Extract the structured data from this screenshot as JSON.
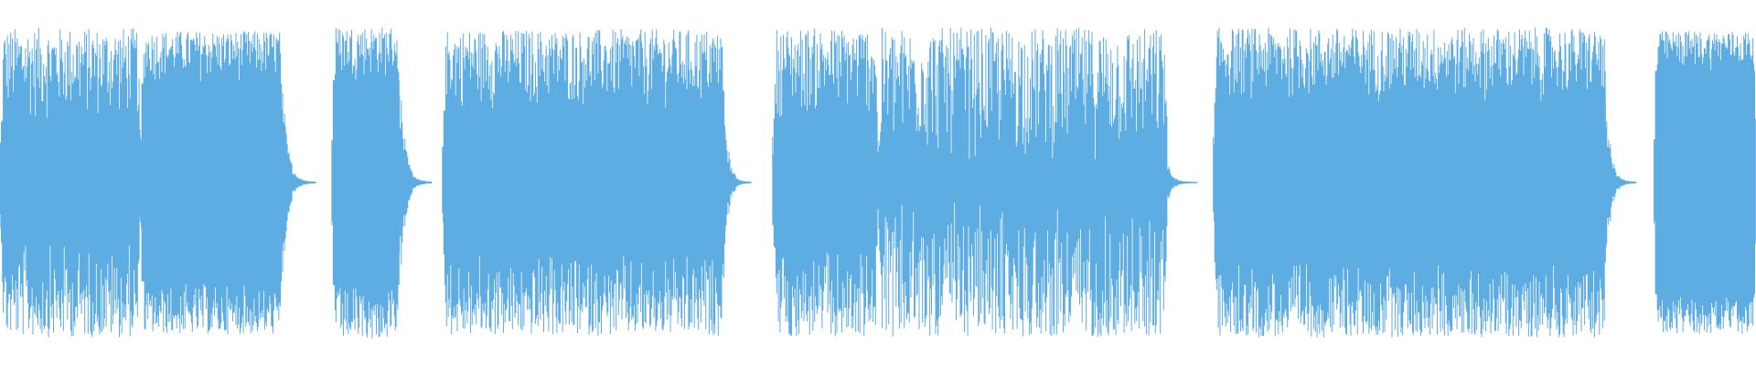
{
  "chart_data": {
    "type": "area",
    "description_kind": "audio-waveform",
    "title": "",
    "xlabel": "",
    "ylabel": "",
    "axes_visible": false,
    "grid": false,
    "ylim": [
      -1,
      1
    ],
    "xlim": [
      0,
      1
    ],
    "color": "#5DACE2",
    "background": "#FFFFFF",
    "segments": [
      {
        "start": 0.0,
        "end": 0.08,
        "peak": 0.97,
        "core": 0.37,
        "tail_end": 0.08
      },
      {
        "start": 0.08,
        "end": 0.161,
        "peak": 0.95,
        "core": 0.62,
        "tail_end": 0.18
      },
      {
        "start": 0.189,
        "end": 0.228,
        "peak": 0.98,
        "core": 0.64,
        "tail_end": 0.246
      },
      {
        "start": 0.252,
        "end": 0.413,
        "peak": 0.96,
        "core": 0.45,
        "tail_end": 0.428
      },
      {
        "start": 0.44,
        "end": 0.5,
        "peak": 0.97,
        "core": 0.4,
        "tail_end": 0.5
      },
      {
        "start": 0.5,
        "end": 0.665,
        "peak": 0.97,
        "core": 0.12,
        "tail_end": 0.682
      },
      {
        "start": 0.691,
        "end": 0.915,
        "peak": 0.97,
        "core": 0.5,
        "tail_end": 0.932
      },
      {
        "start": 0.942,
        "end": 1.0,
        "peak": 0.95,
        "core": 0.7,
        "tail_end": 1.0
      }
    ]
  }
}
